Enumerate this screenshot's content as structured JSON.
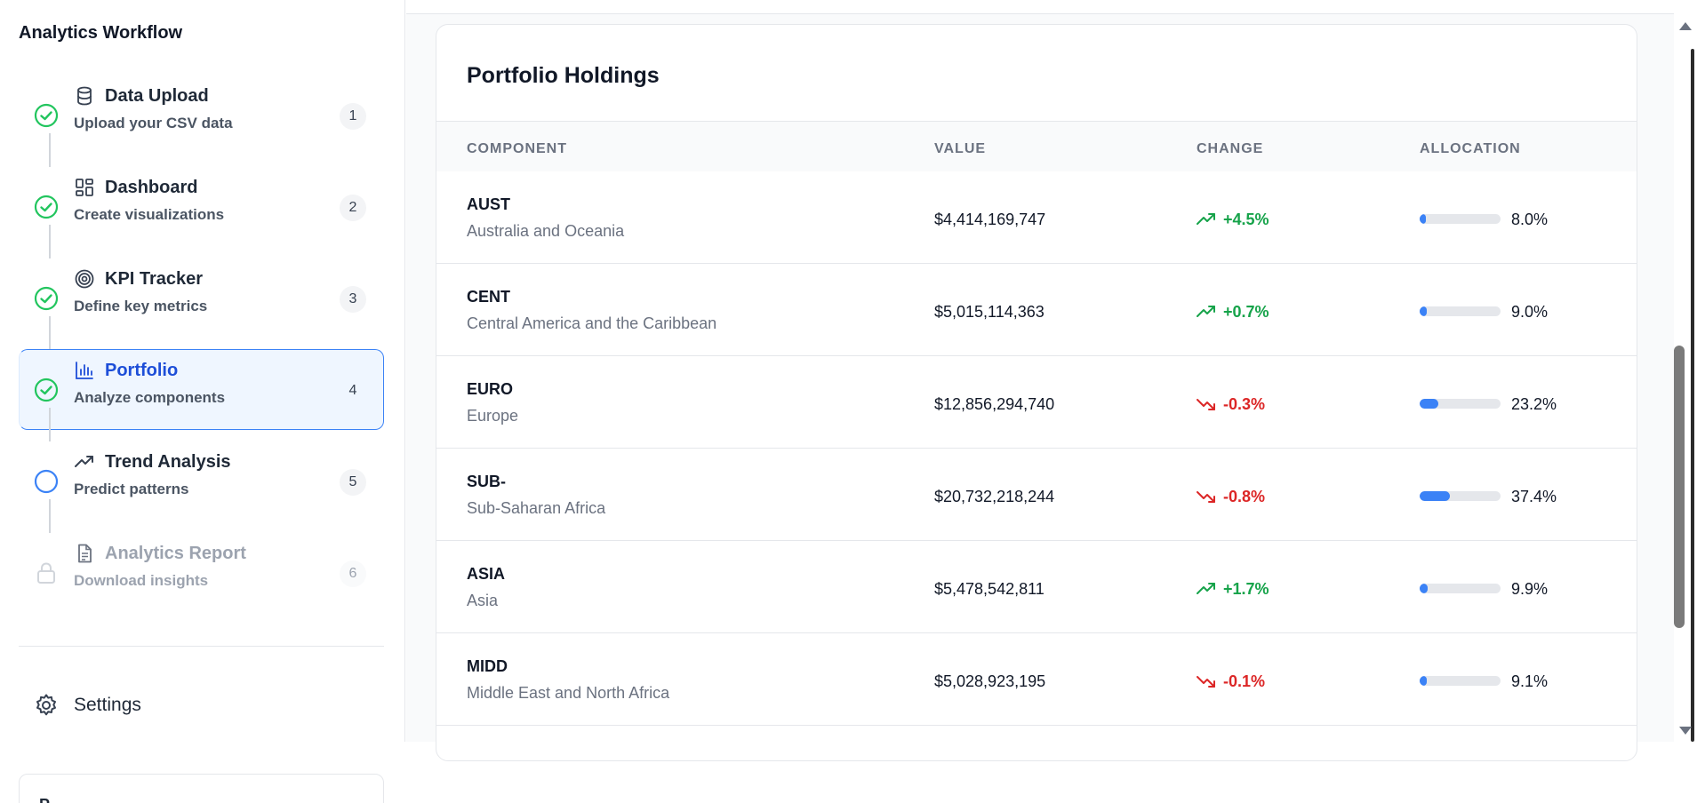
{
  "sidebar": {
    "title": "Analytics Workflow",
    "steps": [
      {
        "label": "Data Upload",
        "desc": "Upload your CSV data",
        "num": "1",
        "icon": "database-icon",
        "status": "complete"
      },
      {
        "label": "Dashboard",
        "desc": "Create visualizations",
        "num": "2",
        "icon": "dashboard-icon",
        "status": "complete"
      },
      {
        "label": "KPI Tracker",
        "desc": "Define key metrics",
        "num": "3",
        "icon": "target-icon",
        "status": "complete"
      },
      {
        "label": "Portfolio",
        "desc": "Analyze components",
        "num": "4",
        "icon": "bar-chart-icon",
        "status": "complete"
      },
      {
        "label": "Trend Analysis",
        "desc": "Predict patterns",
        "num": "5",
        "icon": "trend-up-icon",
        "status": "current"
      },
      {
        "label": "Analytics Report",
        "desc": "Download insights",
        "num": "6",
        "icon": "document-icon",
        "status": "locked"
      }
    ],
    "settings_label": "Settings",
    "bottom_card_text": "P"
  },
  "main": {
    "card_title": "Portfolio Holdings",
    "columns": [
      "COMPONENT",
      "VALUE",
      "CHANGE",
      "ALLOCATION"
    ],
    "rows": [
      {
        "code": "AUST",
        "region": "Australia and Oceania",
        "value": "$4,414,169,747",
        "change": "+4.5%",
        "direction": "up",
        "allocation": "8.0%",
        "allocation_fraction": 0.08
      },
      {
        "code": "CENT",
        "region": "Central America and the Caribbean",
        "value": "$5,015,114,363",
        "change": "+0.7%",
        "direction": "up",
        "allocation": "9.0%",
        "allocation_fraction": 0.09
      },
      {
        "code": "EURO",
        "region": "Europe",
        "value": "$12,856,294,740",
        "change": "-0.3%",
        "direction": "down",
        "allocation": "23.2%",
        "allocation_fraction": 0.232
      },
      {
        "code": "SUB-",
        "region": "Sub-Saharan Africa",
        "value": "$20,732,218,244",
        "change": "-0.8%",
        "direction": "down",
        "allocation": "37.4%",
        "allocation_fraction": 0.374
      },
      {
        "code": "ASIA",
        "region": "Asia",
        "value": "$5,478,542,811",
        "change": "+1.7%",
        "direction": "up",
        "allocation": "9.9%",
        "allocation_fraction": 0.099
      },
      {
        "code": "MIDD",
        "region": "Middle East and North Africa",
        "value": "$5,028,923,195",
        "change": "-0.1%",
        "direction": "down",
        "allocation": "9.1%",
        "allocation_fraction": 0.091
      }
    ]
  },
  "colors": {
    "accent": "#3b82f6",
    "success": "#22c55e",
    "positive": "#16a34a",
    "negative": "#dc2626"
  }
}
